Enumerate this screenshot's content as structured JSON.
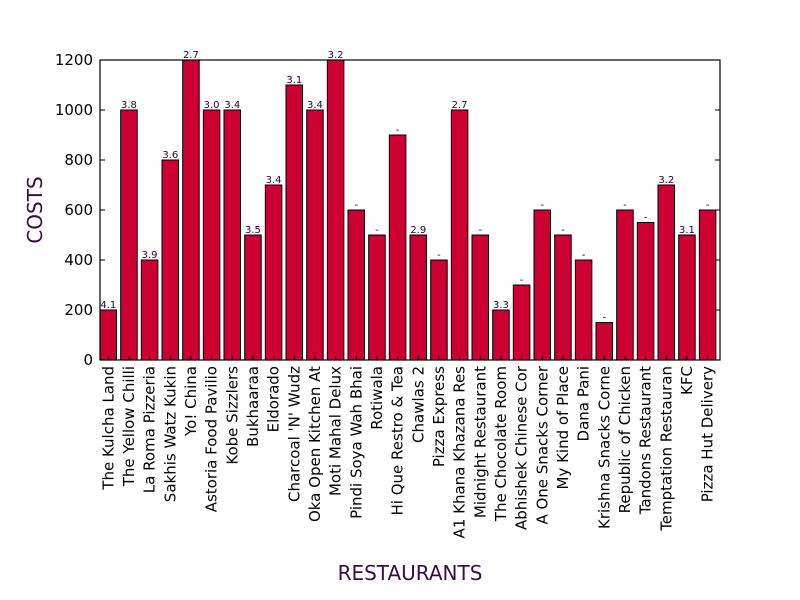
{
  "chart_data": {
    "type": "bar",
    "xlabel": "RESTAURANTS",
    "ylabel": "COSTS",
    "ylim": [
      0,
      1200
    ],
    "yticks": [
      "0",
      "200",
      "400",
      "600",
      "800",
      "1000",
      "1200"
    ],
    "bar_color": "#cc0033",
    "label_color": "#2a0033",
    "title_color": "#3d0a4a",
    "grid": false,
    "categories": [
      "The Kulcha Land",
      "The Yellow Chilli",
      "La Roma Pizzeria",
      "Sakhis Watz Kukin",
      "Yo! China",
      "Astoria Food Pavilio",
      "Kobe Sizzlers",
      "Bukhaaraa",
      "Eldorado",
      "Charcoal 'N' Wudz",
      "Oka Open Kitchen At",
      "Moti Mahal Delux",
      "Pindi Soya Wah Bhai",
      "Rotiwala",
      "Hi Que Restro & Tea",
      "Chawlas 2",
      "Pizza Express",
      "A1 Khana Khazana Res",
      "Midnight Restaurant",
      "The Chocolate Room",
      "Abhishek Chinese Cor",
      "A One Snacks Corner",
      "My Kind of Place",
      "Dana Pani",
      "Krishna Snacks Corne",
      "Republic of Chicken",
      "Tandons Restaurant",
      "Temptation Restauran",
      "KFC",
      "Pizza Hut Delivery"
    ],
    "values": [
      200,
      1000,
      400,
      800,
      1200,
      1000,
      1000,
      500,
      700,
      1100,
      1000,
      1200,
      600,
      500,
      900,
      500,
      400,
      1000,
      500,
      200,
      300,
      600,
      500,
      400,
      150,
      600,
      550,
      700,
      500,
      600
    ],
    "bar_labels": [
      "4.1",
      "3.8",
      "3.9",
      "3.6",
      "2.7",
      "3.0",
      "3.4",
      "3.5",
      "3.4",
      "3.1",
      "3.4",
      "3.2",
      "-",
      "-",
      "-",
      "2.9",
      "-",
      "2.7",
      "-",
      "3.3",
      "-",
      "-",
      "-",
      "-",
      "-",
      "-",
      "-",
      "3.2",
      "3.1",
      "-"
    ]
  }
}
